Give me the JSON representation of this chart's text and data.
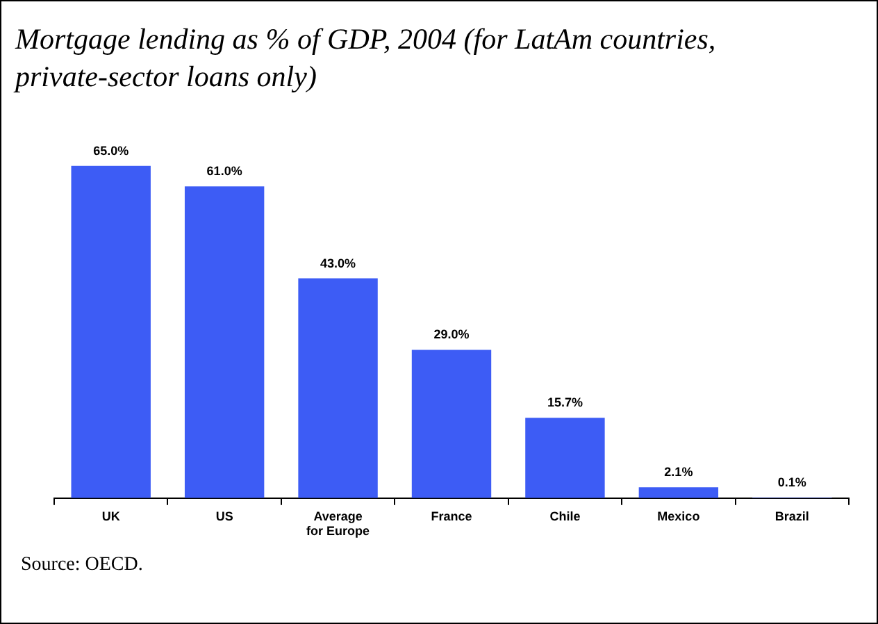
{
  "chart_data": {
    "type": "bar",
    "title": "Mortgage lending as % of GDP, 2004 (for LatAm countries, private-sector loans only)",
    "categories": [
      "UK",
      "US",
      "Average for Europe",
      "France",
      "Chile",
      "Mexico",
      "Brazil"
    ],
    "values": [
      65.0,
      61.0,
      43.0,
      29.0,
      15.7,
      2.1,
      0.1
    ],
    "value_labels": [
      "65.0%",
      "61.0%",
      "43.0%",
      "29.0%",
      "15.7%",
      "2.1%",
      "0.1%"
    ],
    "color": "#3d5cf5",
    "relative": false,
    "annotations": [
      "Source: OECD."
    ]
  }
}
